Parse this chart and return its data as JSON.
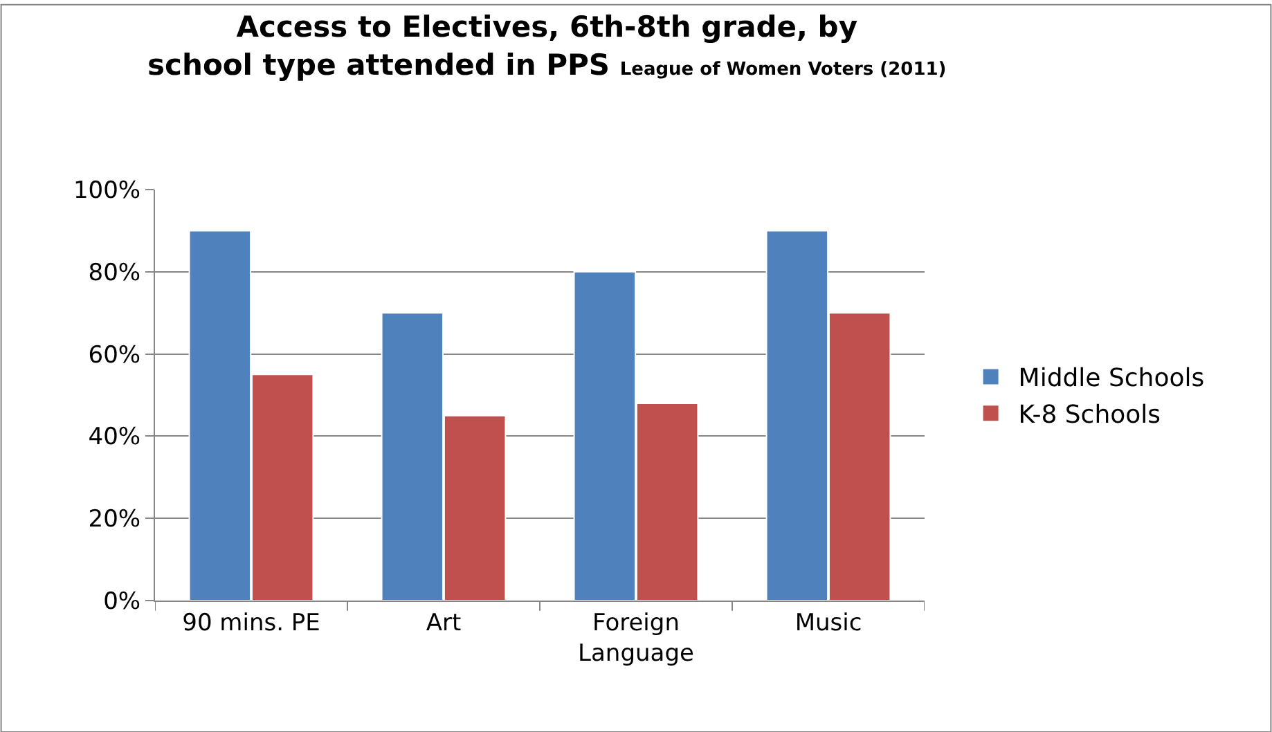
{
  "chart_data": {
    "type": "bar",
    "title": "Access to Electives, 6th-8th grade, by school type attended in PPS",
    "subtitle": "League of Women Voters (2011)",
    "categories": [
      "90 mins. PE",
      "Art",
      "Foreign Language",
      "Music"
    ],
    "series": [
      {
        "name": "Middle Schools",
        "color": "#4f81bd",
        "values": [
          90,
          70,
          80,
          90
        ]
      },
      {
        "name": "K-8 Schools",
        "color": "#c0504d",
        "values": [
          55,
          45,
          48,
          70
        ]
      }
    ],
    "ylim": [
      0,
      100
    ],
    "yticks": [
      {
        "value": 0,
        "label": "0%"
      },
      {
        "value": 20,
        "label": "20%"
      },
      {
        "value": 40,
        "label": "40%"
      },
      {
        "value": 60,
        "label": "60%"
      },
      {
        "value": 80,
        "label": "80%"
      },
      {
        "value": 100,
        "label": "100%"
      }
    ],
    "grid": "y",
    "legend": "right"
  }
}
